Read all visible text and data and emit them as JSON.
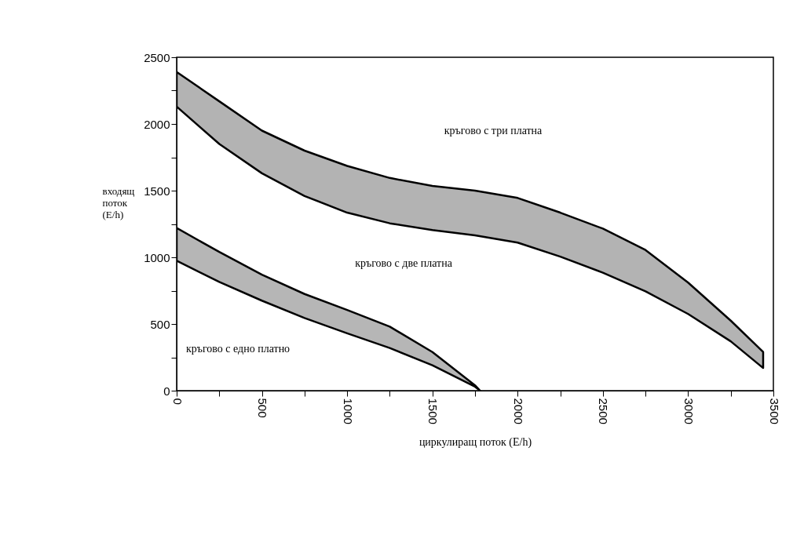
{
  "chart_data": {
    "type": "area",
    "xlabel": "циркулиращ поток (E/h)",
    "ylabel": "входящ поток (E/h)",
    "series": [
      {
        "color": "#b3b3b3",
        "values": [
          null,
          null,
          null,
          null,
          null,
          null,
          null,
          null,
          null,
          null,
          null,
          null,
          null,
          null,
          null
        ],
        "x": [
          0,
          250,
          500,
          750,
          1000,
          1250,
          1500,
          1750,
          2000,
          2250,
          2500,
          2750,
          3000,
          3250,
          3440
        ],
        "lower": [
          2130,
          1850,
          1630,
          1460,
          1335,
          1255,
          1205,
          1165,
          1110,
          1005,
          885,
          745,
          575,
          370,
          170
        ],
        "upper": [
          2390,
          2170,
          1950,
          1800,
          1685,
          1595,
          1535,
          1500,
          1445,
          1335,
          1215,
          1055,
          810,
          525,
          290
        ]
      },
      {
        "color": "#b6b6b6",
        "values": [
          null,
          null,
          null,
          null,
          null,
          null,
          null,
          null,
          null
        ],
        "x": [
          0,
          250,
          500,
          750,
          1000,
          1250,
          1500,
          1750,
          1780
        ],
        "lower": [
          975,
          815,
          675,
          545,
          430,
          320,
          190,
          30,
          0
        ],
        "upper": [
          1220,
          1040,
          870,
          725,
          605,
          480,
          290,
          40,
          0
        ]
      }
    ],
    "annotations": [
      "кръгово с три платна",
      "кръгово с две платна",
      "кръгово с едно платно"
    ],
    "xlim": [
      0,
      3500
    ],
    "ylim": [
      0,
      2500
    ],
    "xticks": [
      0,
      {
        "value": 250,
        "label": null
      },
      500,
      {
        "value": 750,
        "label": null
      },
      1000,
      {
        "value": 1250,
        "label": null
      },
      1500,
      {
        "value": 1750,
        "label": null
      },
      2000,
      {
        "value": 2250,
        "label": null
      },
      2500,
      {
        "value": 2750,
        "label": null
      },
      3000,
      {
        "value": 3250,
        "label": null
      },
      3500
    ],
    "yticks": [
      0,
      {
        "value": 250,
        "label": null
      },
      500,
      {
        "value": 750,
        "label": null
      },
      1000,
      {
        "value": 1250,
        "label": null
      },
      1500,
      {
        "value": 1750,
        "label": null
      },
      2000,
      {
        "value": 2250,
        "label": null
      },
      2500
    ],
    "grid": false
  }
}
